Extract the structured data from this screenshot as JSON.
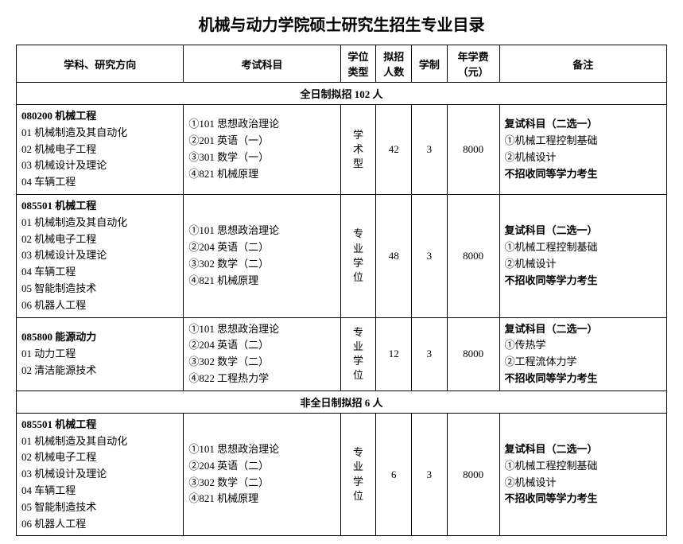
{
  "title": "机械与动力学院硕士研究生招生专业目录",
  "headers": {
    "subject": "学科、研究方向",
    "exam": "考试科目",
    "degree": "学位类型",
    "plan": "拟招人数",
    "years": "学制",
    "fee": "年学费（元）",
    "remark": "备注"
  },
  "sections": [
    {
      "label": "全日制拟招 102 人",
      "rows": [
        {
          "subject_bold": "080200 机械工程",
          "subject_lines": [
            "01 机械制造及其自动化",
            "02 机械电子工程",
            "03 机械设计及理论",
            "04 车辆工程"
          ],
          "exam_lines": [
            "①101 思想政治理论",
            "②201 英语（一）",
            "③301 数学（一）",
            "④821 机械原理"
          ],
          "degree": "学术型",
          "plan": "42",
          "years": "3",
          "fee": "8000",
          "remark_bold1": "复试科目（二选一）",
          "remark_lines": [
            "①机械工程控制基础",
            "②机械设计"
          ],
          "remark_bold2": "不招收同等学力考生"
        },
        {
          "subject_bold": "085501 机械工程",
          "subject_lines": [
            "01 机械制造及其自动化",
            "02 机械电子工程",
            "03 机械设计及理论",
            "04 车辆工程",
            "05 智能制造技术",
            "06 机器人工程"
          ],
          "exam_lines": [
            "①101 思想政治理论",
            "②204 英语（二）",
            "③302 数学（二）",
            "④821 机械原理"
          ],
          "degree": "专业学位",
          "plan": "48",
          "years": "3",
          "fee": "8000",
          "remark_bold1": "复试科目（二选一）",
          "remark_lines": [
            "①机械工程控制基础",
            "②机械设计"
          ],
          "remark_bold2": "不招收同等学力考生"
        },
        {
          "subject_bold": "085800 能源动力",
          "subject_lines": [
            "01 动力工程",
            "02 清洁能源技术"
          ],
          "exam_lines": [
            "①101 思想政治理论",
            "②204 英语（二）",
            "③302 数学（二）",
            "④822 工程热力学"
          ],
          "degree": "专业学位",
          "plan": "12",
          "years": "3",
          "fee": "8000",
          "remark_bold1": "复试科目（二选一）",
          "remark_lines": [
            "①传热学",
            "②工程流体力学"
          ],
          "remark_bold2": "不招收同等学力考生"
        }
      ]
    },
    {
      "label": "非全日制拟招 6 人",
      "rows": [
        {
          "subject_bold": "085501 机械工程",
          "subject_lines": [
            "01 机械制造及其自动化",
            "02 机械电子工程",
            "03 机械设计及理论",
            "04 车辆工程",
            "05 智能制造技术",
            "06 机器人工程"
          ],
          "exam_lines": [
            "①101 思想政治理论",
            "②204 英语（二）",
            "③302 数学（二）",
            "④821 机械原理"
          ],
          "degree": "专业学位",
          "plan": "6",
          "years": "3",
          "fee": "8000",
          "remark_bold1": "复试科目（二选一）",
          "remark_lines": [
            "①机械工程控制基础",
            "②机械设计"
          ],
          "remark_bold2": "不招收同等学力考生"
        }
      ]
    }
  ]
}
